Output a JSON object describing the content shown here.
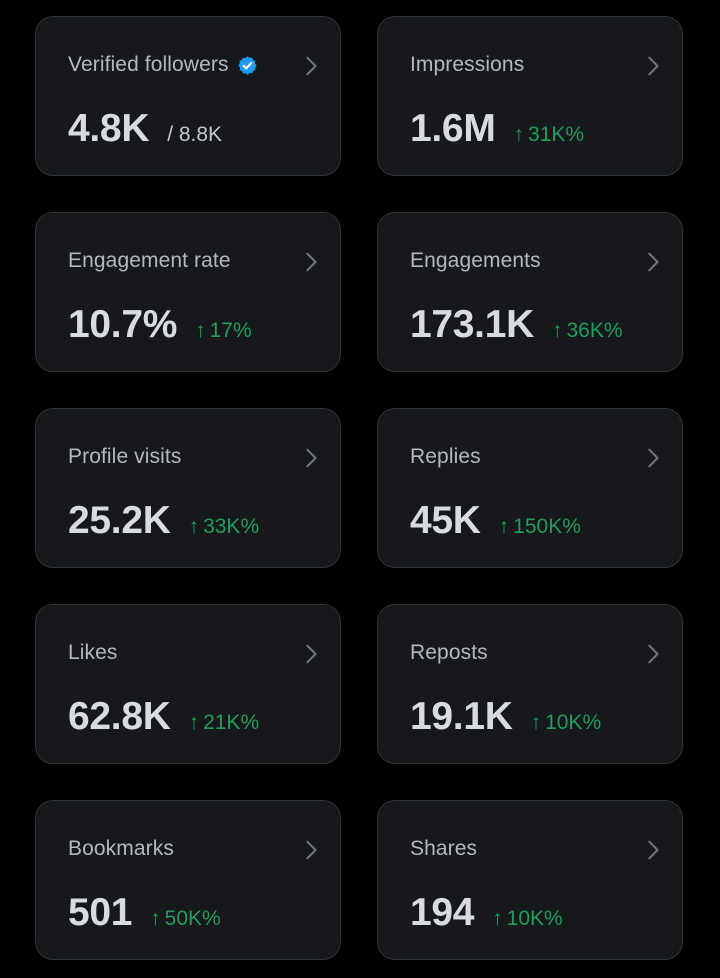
{
  "cards": [
    {
      "id": "verified-followers",
      "label": "Verified followers",
      "value": "4.8K",
      "secondary": "/ 8.8K",
      "verified_icon": "verified-badge-icon"
    },
    {
      "id": "impressions",
      "label": "Impressions",
      "value": "1.6M",
      "delta": "31K%"
    },
    {
      "id": "engagement-rate",
      "label": "Engagement rate",
      "value": "10.7%",
      "delta": "17%"
    },
    {
      "id": "engagements",
      "label": "Engagements",
      "value": "173.1K",
      "delta": "36K%"
    },
    {
      "id": "profile-visits",
      "label": "Profile visits",
      "value": "25.2K",
      "delta": "33K%"
    },
    {
      "id": "replies",
      "label": "Replies",
      "value": "45K",
      "delta": "150K%"
    },
    {
      "id": "likes",
      "label": "Likes",
      "value": "62.8K",
      "delta": "21K%"
    },
    {
      "id": "reposts",
      "label": "Reposts",
      "value": "19.1K",
      "delta": "10K%"
    },
    {
      "id": "bookmarks",
      "label": "Bookmarks",
      "value": "501",
      "delta": "50K%"
    },
    {
      "id": "shares",
      "label": "Shares",
      "value": "194",
      "delta": "10K%"
    }
  ],
  "delta_arrow": "↑",
  "icons": {
    "chevron": "chevron-right-icon",
    "trend": "arrow-up-icon",
    "verified": "verified-badge-icon"
  },
  "colors": {
    "background": "#000000",
    "card_background": "#16181c",
    "card_border": "#2f3336",
    "label": "#b5b9bd",
    "value": "#d9dcdf",
    "positive_delta": "#1f9e5e",
    "verified_badge": "#1d9bf0"
  }
}
